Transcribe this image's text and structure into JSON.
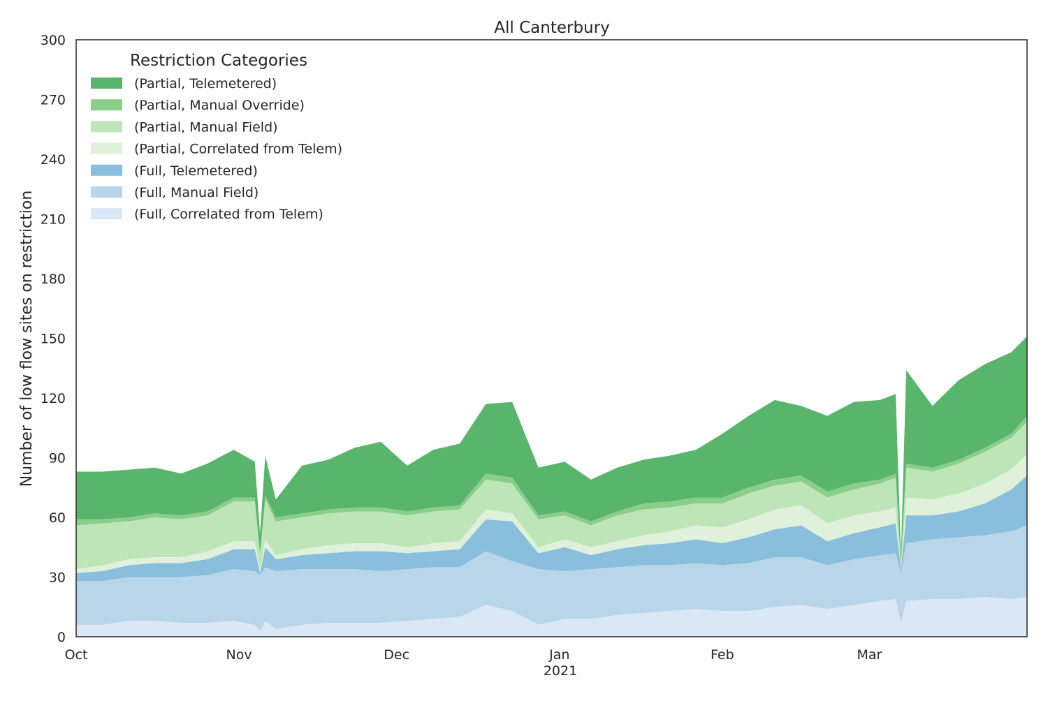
{
  "chart_data": {
    "type": "area",
    "stacked": true,
    "title": "All Canterbury",
    "ylabel": "Number of low flow sites on restriction",
    "xlabel": "",
    "ylim": [
      0,
      300
    ],
    "yticks": [
      0,
      30,
      60,
      90,
      120,
      150,
      180,
      210,
      240,
      270,
      300
    ],
    "xrange": [
      "2020-10-01",
      "2021-03-31"
    ],
    "xticks": [
      {
        "date": "2020-10-01",
        "label": "Oct"
      },
      {
        "date": "2020-11-01",
        "label": "Nov"
      },
      {
        "date": "2020-12-01",
        "label": "Dec"
      },
      {
        "date": "2021-01-01",
        "label": "Jan"
      },
      {
        "date": "2021-02-01",
        "label": "Feb"
      },
      {
        "date": "2021-03-01",
        "label": "Mar"
      }
    ],
    "year_label": "2021",
    "grid": false,
    "legend": {
      "title": "Restriction Categories",
      "placement": "upper-left"
    },
    "x": [
      "2020-10-01",
      "2020-10-06",
      "2020-10-11",
      "2020-10-16",
      "2020-10-21",
      "2020-10-26",
      "2020-10-31",
      "2020-11-04",
      "2020-11-05",
      "2020-11-06",
      "2020-11-08",
      "2020-11-13",
      "2020-11-18",
      "2020-11-23",
      "2020-11-28",
      "2020-12-03",
      "2020-12-08",
      "2020-12-13",
      "2020-12-18",
      "2020-12-23",
      "2020-12-28",
      "2021-01-02",
      "2021-01-07",
      "2021-01-12",
      "2021-01-17",
      "2021-01-22",
      "2021-01-27",
      "2021-02-01",
      "2021-02-06",
      "2021-02-11",
      "2021-02-16",
      "2021-02-21",
      "2021-02-26",
      "2021-03-03",
      "2021-03-06",
      "2021-03-07",
      "2021-03-08",
      "2021-03-13",
      "2021-03-18",
      "2021-03-23",
      "2021-03-28",
      "2021-03-31"
    ],
    "series": [
      {
        "name": "(Full, Correlated from Telem)",
        "color": "#dae8f6",
        "values": [
          6,
          6,
          8,
          8,
          7,
          7,
          8,
          6,
          3,
          8,
          4,
          6,
          7,
          7,
          7,
          8,
          9,
          10,
          16,
          13,
          6,
          9,
          9,
          11,
          12,
          13,
          14,
          13,
          13,
          15,
          16,
          14,
          16,
          18,
          19,
          7,
          18,
          19,
          19,
          20,
          19,
          20
        ]
      },
      {
        "name": "(Full, Manual Field)",
        "color": "#b8d5ea",
        "values": [
          22,
          22,
          22,
          22,
          23,
          24,
          26,
          27,
          28,
          27,
          29,
          28,
          27,
          27,
          26,
          26,
          26,
          25,
          27,
          25,
          28,
          24,
          25,
          24,
          24,
          23,
          23,
          23,
          24,
          25,
          24,
          22,
          23,
          23,
          23,
          25,
          29,
          30,
          31,
          31,
          34,
          36
        ]
      },
      {
        "name": "(Full, Telemetered)",
        "color": "#89bedc",
        "values": [
          4,
          5,
          6,
          7,
          7,
          8,
          10,
          11,
          1,
          10,
          6,
          7,
          8,
          9,
          10,
          8,
          8,
          9,
          16,
          20,
          8,
          12,
          7,
          9,
          10,
          11,
          12,
          11,
          13,
          14,
          16,
          12,
          13,
          14,
          15,
          2,
          14,
          12,
          13,
          16,
          21,
          25
        ]
      },
      {
        "name": "(Partial, Correlated from Telem)",
        "color": "#dff1da",
        "values": [
          2,
          3,
          3,
          3,
          3,
          4,
          4,
          4,
          2,
          4,
          2,
          3,
          4,
          4,
          4,
          3,
          4,
          4,
          5,
          4,
          3,
          4,
          4,
          4,
          5,
          6,
          7,
          8,
          9,
          10,
          10,
          9,
          9,
          8,
          8,
          0,
          9,
          8,
          9,
          10,
          10,
          11
        ]
      },
      {
        "name": "(Partial, Manual Field)",
        "color": "#bde5b8",
        "values": [
          22,
          21,
          19,
          20,
          19,
          18,
          20,
          20,
          7,
          20,
          17,
          16,
          16,
          16,
          16,
          16,
          16,
          16,
          15,
          15,
          14,
          12,
          11,
          13,
          13,
          12,
          11,
          12,
          13,
          12,
          12,
          13,
          13,
          14,
          15,
          2,
          15,
          14,
          15,
          16,
          16,
          16
        ]
      },
      {
        "name": "(Partial, Manual Override)",
        "color": "#8bce89",
        "values": [
          3,
          2,
          2,
          2,
          2,
          2,
          2,
          2,
          1,
          2,
          2,
          2,
          2,
          2,
          2,
          2,
          2,
          2,
          3,
          3,
          2,
          2,
          2,
          2,
          3,
          3,
          3,
          3,
          3,
          3,
          3,
          3,
          3,
          2,
          2,
          1,
          2,
          2,
          2,
          2,
          2,
          3
        ]
      },
      {
        "name": "(Partial, Telemetered)",
        "color": "#59b56b",
        "values": [
          24,
          24,
          24,
          23,
          21,
          24,
          24,
          18,
          10,
          20,
          9,
          24,
          25,
          30,
          33,
          23,
          29,
          31,
          35,
          38,
          24,
          25,
          21,
          22,
          22,
          23,
          24,
          32,
          36,
          40,
          35,
          38,
          41,
          40,
          40,
          4,
          47,
          31,
          40,
          42,
          41,
          40
        ]
      }
    ]
  }
}
